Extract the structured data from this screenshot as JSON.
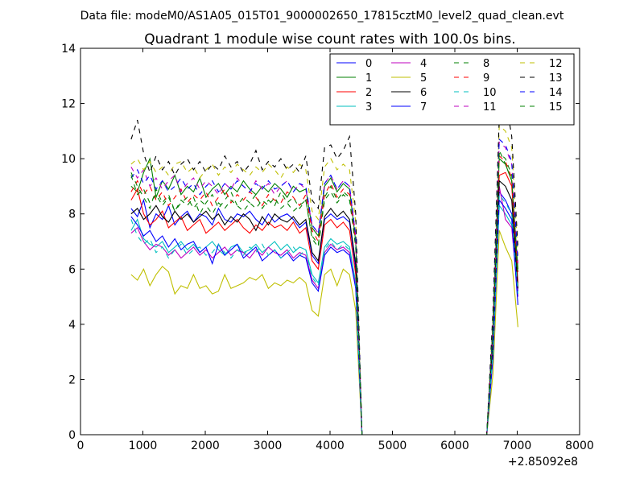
{
  "chart_data": {
    "type": "line",
    "suptitle": "Data file: modeM0/AS1A05_015T01_9000002650_17815cztM0_level2_quad_clean.evt",
    "title": "Quadrant 1 module wise count rates with 100.0s bins.",
    "xlabel": "",
    "ylabel": "",
    "xlim": [
      0,
      8000
    ],
    "ylim": [
      0,
      14
    ],
    "x_offset_label": "+2.85092e8",
    "x_ticks": [
      "0",
      "1000",
      "2000",
      "3000",
      "4000",
      "5000",
      "6000",
      "7000",
      "8000"
    ],
    "y_ticks": [
      "0",
      "2",
      "4",
      "6",
      "8",
      "10",
      "12",
      "14"
    ],
    "grid": false,
    "legend_position": "top-right",
    "legend_columns": 4,
    "x": [
      812,
      912,
      1012,
      1112,
      1212,
      1312,
      1412,
      1512,
      1612,
      1712,
      1812,
      1912,
      2012,
      2112,
      2212,
      2312,
      2412,
      2512,
      2612,
      2712,
      2812,
      2912,
      3012,
      3112,
      3212,
      3312,
      3412,
      3512,
      3612,
      3712,
      3812,
      3912,
      4012,
      4112,
      4212,
      4312,
      4412,
      4512,
      4612,
      4712,
      4812,
      4912,
      5012,
      5112,
      5212,
      5312,
      5412,
      5512,
      5612,
      5712,
      5812,
      5912,
      6012,
      6112,
      6212,
      6312,
      6412,
      6512,
      6612,
      6712,
      6812,
      6912,
      7012
    ],
    "series": [
      {
        "name": "0",
        "color": "#0000ff",
        "dash": false,
        "values": [
          8.2,
          7.9,
          8.5,
          7.5,
          8.0,
          7.8,
          8.3,
          7.6,
          7.9,
          8.1,
          7.7,
          8.0,
          7.9,
          7.6,
          8.2,
          7.8,
          7.7,
          8.0,
          7.9,
          8.1,
          7.8,
          7.6,
          8.0,
          7.7,
          7.9,
          8.0,
          7.8,
          7.5,
          7.7,
          6.5,
          6.2,
          7.8,
          8.0,
          7.8,
          7.9,
          7.7,
          6.0,
          0,
          0,
          0,
          0,
          0,
          0,
          0,
          0,
          0,
          0,
          0,
          0,
          0,
          0,
          0,
          0,
          0,
          0,
          0,
          0,
          0,
          3.5,
          8.8,
          8.5,
          8.0,
          5.2
        ]
      },
      {
        "name": "1",
        "color": "#008000",
        "dash": false,
        "values": [
          9.0,
          8.8,
          9.5,
          10.0,
          8.6,
          9.2,
          8.9,
          9.4,
          8.7,
          9.0,
          8.8,
          9.3,
          8.6,
          8.9,
          9.1,
          8.7,
          9.0,
          8.8,
          9.2,
          8.9,
          8.7,
          9.0,
          8.8,
          9.1,
          8.9,
          8.6,
          9.0,
          8.8,
          8.9,
          7.5,
          7.2,
          9.0,
          9.3,
          8.8,
          9.1,
          8.9,
          7.0,
          0,
          0,
          0,
          0,
          0,
          0,
          0,
          0,
          0,
          0,
          0,
          0,
          0,
          0,
          0,
          0,
          0,
          0,
          0,
          0,
          0,
          4.0,
          10.0,
          9.8,
          9.2,
          6.0
        ]
      },
      {
        "name": "2",
        "color": "#ff0000",
        "dash": false,
        "values": [
          8.5,
          8.9,
          8.0,
          7.6,
          7.8,
          8.1,
          7.5,
          7.7,
          7.9,
          7.4,
          7.6,
          7.8,
          7.3,
          7.5,
          7.7,
          7.4,
          7.6,
          7.8,
          7.5,
          7.3,
          7.6,
          7.4,
          7.7,
          7.5,
          7.6,
          7.4,
          7.7,
          7.3,
          7.5,
          6.3,
          6.0,
          7.6,
          7.8,
          7.5,
          7.7,
          7.4,
          5.8,
          0,
          0,
          0,
          0,
          0,
          0,
          0,
          0,
          0,
          0,
          0,
          0,
          0,
          0,
          0,
          0,
          0,
          0,
          0,
          0,
          0,
          3.3,
          9.4,
          9.5,
          9.0,
          5.5
        ]
      },
      {
        "name": "3",
        "color": "#00bfbf",
        "dash": false,
        "values": [
          7.4,
          7.8,
          7.1,
          6.9,
          6.8,
          7.0,
          6.6,
          6.8,
          7.0,
          6.7,
          6.9,
          6.6,
          6.8,
          7.0,
          6.7,
          6.5,
          6.8,
          6.9,
          6.6,
          6.7,
          6.9,
          6.6,
          6.8,
          7.0,
          6.7,
          6.9,
          6.6,
          6.8,
          6.7,
          5.8,
          5.5,
          6.8,
          7.1,
          6.9,
          7.0,
          6.8,
          5.5,
          0,
          0,
          0,
          0,
          0,
          0,
          0,
          0,
          0,
          0,
          0,
          0,
          0,
          0,
          0,
          0,
          0,
          0,
          0,
          0,
          0,
          3.0,
          8.3,
          8.0,
          7.6,
          5.0
        ]
      },
      {
        "name": "4",
        "color": "#bf00bf",
        "dash": false,
        "values": [
          7.3,
          7.5,
          7.0,
          6.7,
          6.9,
          6.8,
          6.5,
          6.7,
          6.4,
          6.6,
          6.8,
          6.5,
          6.7,
          6.4,
          6.6,
          6.8,
          6.5,
          6.7,
          6.6,
          6.4,
          6.7,
          6.5,
          6.8,
          6.6,
          6.5,
          6.7,
          6.4,
          6.6,
          6.5,
          5.6,
          5.3,
          6.6,
          6.9,
          6.7,
          6.8,
          6.6,
          5.4,
          0,
          0,
          0,
          0,
          0,
          0,
          0,
          0,
          0,
          0,
          0,
          0,
          0,
          0,
          0,
          0,
          0,
          0,
          0,
          0,
          0,
          2.9,
          9.0,
          7.8,
          7.5,
          5.0
        ]
      },
      {
        "name": "5",
        "color": "#bfbf00",
        "dash": false,
        "values": [
          5.8,
          5.6,
          6.0,
          5.4,
          5.8,
          6.1,
          5.9,
          5.1,
          5.4,
          5.3,
          5.8,
          5.3,
          5.4,
          5.1,
          5.2,
          5.8,
          5.3,
          5.4,
          5.5,
          5.7,
          5.6,
          5.8,
          5.3,
          5.5,
          5.4,
          5.6,
          5.5,
          5.7,
          5.5,
          4.5,
          4.3,
          5.8,
          6.0,
          5.4,
          6.0,
          5.8,
          4.5,
          0,
          0,
          0,
          0,
          0,
          0,
          0,
          0,
          0,
          0,
          0,
          0,
          0,
          0,
          0,
          0,
          0,
          0,
          0,
          0,
          0,
          2.2,
          7.4,
          6.8,
          6.3,
          3.9
        ]
      },
      {
        "name": "6",
        "color": "#000000",
        "dash": false,
        "values": [
          8.0,
          8.2,
          7.8,
          8.0,
          8.3,
          7.9,
          7.7,
          8.1,
          7.8,
          8.0,
          7.7,
          7.9,
          8.1,
          7.8,
          8.0,
          7.6,
          7.9,
          7.7,
          8.0,
          7.8,
          7.4,
          7.9,
          7.6,
          8.0,
          7.8,
          7.7,
          7.9,
          7.6,
          7.8,
          6.6,
          6.3,
          7.9,
          8.2,
          7.9,
          8.1,
          7.8,
          6.2,
          0,
          0,
          0,
          0,
          0,
          0,
          0,
          0,
          0,
          0,
          0,
          0,
          0,
          0,
          0,
          0,
          0,
          0,
          0,
          0,
          0,
          3.4,
          9.2,
          9.0,
          8.5,
          5.3
        ]
      },
      {
        "name": "7",
        "color": "#0000ff",
        "dash": false,
        "values": [
          7.9,
          7.6,
          7.2,
          7.4,
          7.0,
          7.2,
          6.8,
          7.1,
          6.7,
          6.9,
          7.0,
          6.6,
          6.8,
          6.2,
          6.9,
          6.5,
          6.7,
          6.9,
          6.4,
          6.6,
          6.8,
          6.3,
          6.5,
          6.7,
          6.4,
          6.6,
          6.3,
          6.5,
          6.4,
          5.5,
          5.2,
          6.5,
          6.8,
          6.6,
          6.7,
          6.5,
          5.3,
          0,
          0,
          0,
          0,
          0,
          0,
          0,
          0,
          0,
          0,
          0,
          0,
          0,
          0,
          0,
          0,
          0,
          0,
          0,
          0,
          0,
          2.8,
          8.5,
          8.2,
          7.8,
          4.7
        ]
      },
      {
        "name": "8",
        "color": "#008000",
        "dash": true,
        "values": [
          9.5,
          9.0,
          8.6,
          8.2,
          8.9,
          8.4,
          8.7,
          8.1,
          8.5,
          8.3,
          8.6,
          8.0,
          8.4,
          8.7,
          8.2,
          8.5,
          8.8,
          8.3,
          8.6,
          8.4,
          8.7,
          8.2,
          8.5,
          8.3,
          8.8,
          8.4,
          8.6,
          8.2,
          8.5,
          7.2,
          6.9,
          8.6,
          9.0,
          8.5,
          8.8,
          8.6,
          6.8,
          0,
          0,
          0,
          0,
          0,
          0,
          0,
          0,
          0,
          0,
          0,
          0,
          0,
          0,
          0,
          0,
          0,
          0,
          0,
          0,
          0,
          3.8,
          10.2,
          10.0,
          9.4,
          5.9
        ]
      },
      {
        "name": "9",
        "color": "#ff0000",
        "dash": true,
        "values": [
          8.8,
          9.2,
          8.7,
          9.0,
          8.5,
          8.8,
          8.3,
          8.6,
          8.9,
          8.4,
          8.7,
          8.5,
          8.8,
          8.3,
          8.6,
          8.9,
          8.4,
          8.7,
          8.5,
          8.8,
          8.6,
          8.3,
          8.7,
          8.5,
          8.4,
          8.8,
          8.6,
          8.3,
          8.7,
          7.4,
          7.0,
          8.7,
          9.1,
          8.6,
          8.9,
          8.7,
          6.9,
          0,
          0,
          0,
          0,
          0,
          0,
          0,
          0,
          0,
          0,
          0,
          0,
          0,
          0,
          0,
          0,
          0,
          0,
          0,
          0,
          0,
          3.8,
          10.1,
          9.9,
          9.3,
          5.8
        ]
      },
      {
        "name": "10",
        "color": "#00bfbf",
        "dash": true,
        "values": [
          7.8,
          7.2,
          6.9,
          7.1,
          6.6,
          6.8,
          6.4,
          6.7,
          6.9,
          6.5,
          6.7,
          6.8,
          6.5,
          6.6,
          6.9,
          6.6,
          6.4,
          6.7,
          6.5,
          6.8,
          6.6,
          6.9,
          6.5,
          6.7,
          6.4,
          6.6,
          6.8,
          6.5,
          6.7,
          5.7,
          5.4,
          6.7,
          7.0,
          6.7,
          6.9,
          6.7,
          5.5,
          0,
          0,
          0,
          0,
          0,
          0,
          0,
          0,
          0,
          0,
          0,
          0,
          0,
          0,
          0,
          0,
          0,
          0,
          0,
          0,
          0,
          3.0,
          8.7,
          8.4,
          8.0,
          5.1
        ]
      },
      {
        "name": "11",
        "color": "#bf00bf",
        "dash": true,
        "values": [
          9.7,
          9.3,
          9.6,
          9.0,
          9.3,
          8.9,
          9.2,
          9.4,
          8.8,
          9.1,
          9.3,
          8.9,
          9.2,
          9.0,
          8.7,
          9.1,
          8.9,
          9.3,
          9.0,
          8.8,
          9.2,
          8.9,
          9.1,
          8.7,
          9.0,
          9.2,
          8.8,
          9.1,
          8.9,
          7.6,
          7.3,
          9.1,
          9.4,
          8.9,
          9.2,
          9.0,
          7.2,
          0,
          0,
          0,
          0,
          0,
          0,
          0,
          0,
          0,
          0,
          0,
          0,
          0,
          0,
          0,
          0,
          0,
          0,
          0,
          0,
          0,
          4.0,
          10.6,
          10.4,
          9.8,
          6.2
        ]
      },
      {
        "name": "12",
        "color": "#bfbf00",
        "dash": true,
        "values": [
          9.8,
          10.0,
          9.6,
          9.9,
          9.5,
          9.7,
          9.4,
          9.8,
          9.9,
          9.5,
          9.7,
          9.3,
          9.6,
          9.8,
          9.4,
          9.7,
          9.5,
          9.8,
          9.6,
          9.4,
          9.7,
          9.5,
          9.8,
          9.6,
          9.3,
          9.7,
          9.5,
          9.8,
          9.6,
          8.1,
          7.8,
          9.7,
          10.0,
          9.6,
          9.8,
          9.6,
          7.7,
          0,
          0,
          0,
          0,
          0,
          0,
          0,
          0,
          0,
          0,
          0,
          0,
          0,
          0,
          0,
          0,
          0,
          0,
          0,
          0,
          0,
          4.3,
          11.2,
          11.0,
          10.4,
          6.5
        ]
      },
      {
        "name": "13",
        "color": "#000000",
        "dash": true,
        "values": [
          10.7,
          11.4,
          10.2,
          9.5,
          10.1,
          9.6,
          9.9,
          9.4,
          9.8,
          10.0,
          9.6,
          9.9,
          9.5,
          9.8,
          9.6,
          10.1,
          9.7,
          9.9,
          9.5,
          9.8,
          10.3,
          9.6,
          9.9,
          9.7,
          10.0,
          9.6,
          9.8,
          9.5,
          10.1,
          8.5,
          8.2,
          10.4,
          10.5,
          10.0,
          10.3,
          10.8,
          8.0,
          0,
          0,
          0,
          0,
          0,
          0,
          0,
          0,
          0,
          0,
          0,
          0,
          0,
          0,
          0,
          0,
          0,
          0,
          0,
          0,
          0,
          4.5,
          11.5,
          12.2,
          10.8,
          6.8
        ]
      },
      {
        "name": "14",
        "color": "#0000ff",
        "dash": true,
        "values": [
          9.3,
          9.6,
          9.1,
          9.4,
          8.9,
          9.2,
          8.8,
          9.0,
          9.3,
          8.9,
          9.1,
          8.7,
          9.0,
          9.2,
          8.8,
          9.1,
          8.9,
          9.2,
          9.0,
          8.8,
          9.1,
          8.9,
          9.2,
          8.9,
          9.0,
          9.2,
          8.8,
          9.1,
          9.0,
          7.6,
          7.3,
          9.1,
          9.4,
          8.9,
          9.2,
          9.0,
          7.2,
          0,
          0,
          0,
          0,
          0,
          0,
          0,
          0,
          0,
          0,
          0,
          0,
          0,
          0,
          0,
          0,
          0,
          0,
          0,
          0,
          0,
          4.0,
          10.7,
          10.5,
          9.9,
          6.3
        ]
      },
      {
        "name": "15",
        "color": "#008000",
        "dash": true,
        "values": [
          9.4,
          8.7,
          8.9,
          8.4,
          8.7,
          8.3,
          8.6,
          8.1,
          8.4,
          8.6,
          8.2,
          8.5,
          8.3,
          8.0,
          8.4,
          8.2,
          8.5,
          8.3,
          8.1,
          8.4,
          8.2,
          8.5,
          8.3,
          8.6,
          8.2,
          8.4,
          8.1,
          8.3,
          8.5,
          7.1,
          6.8,
          8.5,
          8.8,
          8.4,
          8.7,
          8.5,
          6.8,
          0,
          0,
          0,
          0,
          0,
          0,
          0,
          0,
          0,
          0,
          0,
          0,
          0,
          0,
          0,
          0,
          0,
          0,
          0,
          0,
          0,
          3.8,
          10.3,
          9.8,
          9.2,
          5.8
        ]
      }
    ]
  }
}
